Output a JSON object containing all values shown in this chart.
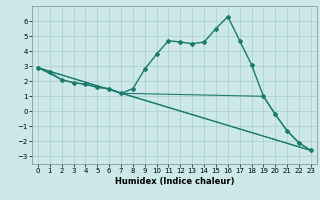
{
  "title": "",
  "xlabel": "Humidex (Indice chaleur)",
  "xlim": [
    -0.5,
    23.5
  ],
  "ylim": [
    -3.5,
    7.0
  ],
  "yticks": [
    -3,
    -2,
    -1,
    0,
    1,
    2,
    3,
    4,
    5,
    6
  ],
  "xticks": [
    0,
    1,
    2,
    3,
    4,
    5,
    6,
    7,
    8,
    9,
    10,
    11,
    12,
    13,
    14,
    15,
    16,
    17,
    18,
    19,
    20,
    21,
    22,
    23
  ],
  "background_color": "#cce8e8",
  "grid_color": "#aacccc",
  "line_color": "#1a7a6e",
  "line1_x": [
    0,
    1,
    2,
    3,
    4,
    5,
    6,
    7,
    8,
    9,
    10,
    11,
    12,
    13,
    14,
    15,
    16,
    17,
    18,
    19,
    20,
    21,
    22,
    23
  ],
  "line1_y": [
    2.9,
    2.6,
    2.1,
    1.9,
    1.8,
    1.6,
    1.5,
    1.2,
    1.5,
    2.8,
    3.8,
    4.7,
    4.6,
    4.5,
    4.6,
    5.5,
    6.3,
    4.7,
    3.1,
    1.0,
    -0.2,
    -1.3,
    -2.1,
    -2.6
  ],
  "line2_x": [
    0,
    2,
    3,
    4,
    5,
    6,
    7,
    19,
    20,
    21,
    22,
    23
  ],
  "line2_y": [
    2.9,
    2.1,
    1.9,
    1.8,
    1.6,
    1.5,
    1.2,
    1.0,
    -0.2,
    -1.3,
    -2.1,
    -2.6
  ],
  "line3_x": [
    0,
    23
  ],
  "line3_y": [
    2.9,
    -2.6
  ],
  "line4_x": [
    0,
    7,
    23
  ],
  "line4_y": [
    2.9,
    1.2,
    -2.6
  ]
}
